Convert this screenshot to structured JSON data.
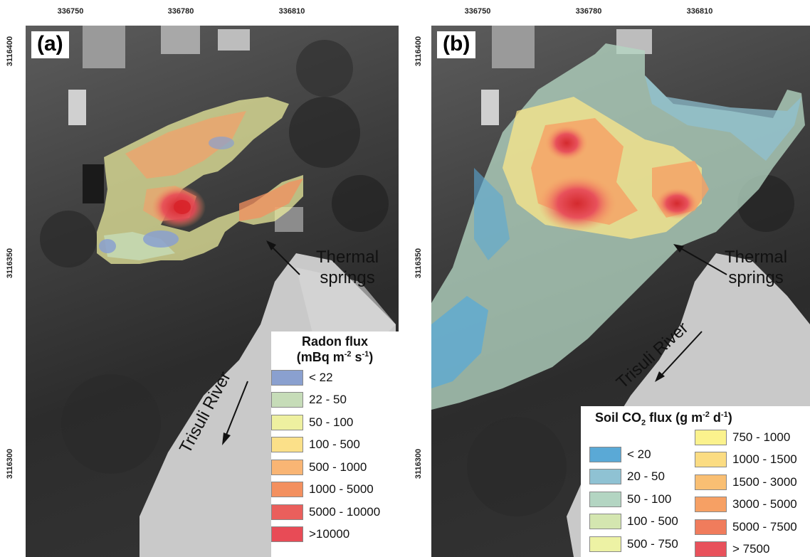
{
  "axes": {
    "x_ticks": [
      "336750",
      "336780",
      "336810"
    ],
    "y_ticks": [
      "3116400",
      "3116350",
      "3116300"
    ]
  },
  "panels": {
    "a": {
      "label": "(a)",
      "annotations": {
        "thermal_line1": "Thermal",
        "thermal_line2": "springs",
        "river": "Trisuli River"
      },
      "legend": {
        "title_line1": "Radon flux",
        "title_prefix": "(mBq m",
        "title_sup1": "-2",
        "title_mid": " s",
        "title_sup2": "-1",
        "title_suffix": ")",
        "items": [
          {
            "label": "< 22",
            "color": "#8aa0cf"
          },
          {
            "label": "22 - 50",
            "color": "#c6dcb8"
          },
          {
            "label": "50 - 100",
            "color": "#eef0a0"
          },
          {
            "label": "100 - 500",
            "color": "#fbe089"
          },
          {
            "label": "500 - 1000",
            "color": "#f9b574"
          },
          {
            "label": "1000 - 5000",
            "color": "#f3905f"
          },
          {
            "label": "5000 - 10000",
            "color": "#ea5f5c"
          },
          {
            "label": ">10000",
            "color": "#e84b56"
          }
        ]
      }
    },
    "b": {
      "label": "(b)",
      "annotations": {
        "thermal_line1": "Thermal",
        "thermal_line2": "springs",
        "river": "Trisuli River"
      },
      "legend": {
        "title_prefix": "Soil CO",
        "title_sub": "2",
        "title_mid1": " flux (g m",
        "title_sup1": "-2",
        "title_mid2": " d",
        "title_sup2": "-1",
        "title_suffix": ")",
        "items_left": [
          {
            "label": "< 20",
            "color": "#5aa9d6"
          },
          {
            "label": "20 - 50",
            "color": "#8fc2d3"
          },
          {
            "label": "50 - 100",
            "color": "#b3d5c2"
          },
          {
            "label": "100 - 500",
            "color": "#d4e6b0"
          },
          {
            "label": "500 - 750",
            "color": "#edf2a4"
          }
        ],
        "items_right": [
          {
            "label": "750 - 1000",
            "color": "#fbf28d"
          },
          {
            "label": "1000 - 1500",
            "color": "#fbdc82"
          },
          {
            "label": "1500 - 3000",
            "color": "#f9bf73"
          },
          {
            "label": "3000 - 5000",
            "color": "#f6a064"
          },
          {
            "label": "5000 - 7500",
            "color": "#f07c5c"
          },
          {
            "label": "> 7500",
            "color": "#e8515b"
          }
        ]
      }
    }
  }
}
